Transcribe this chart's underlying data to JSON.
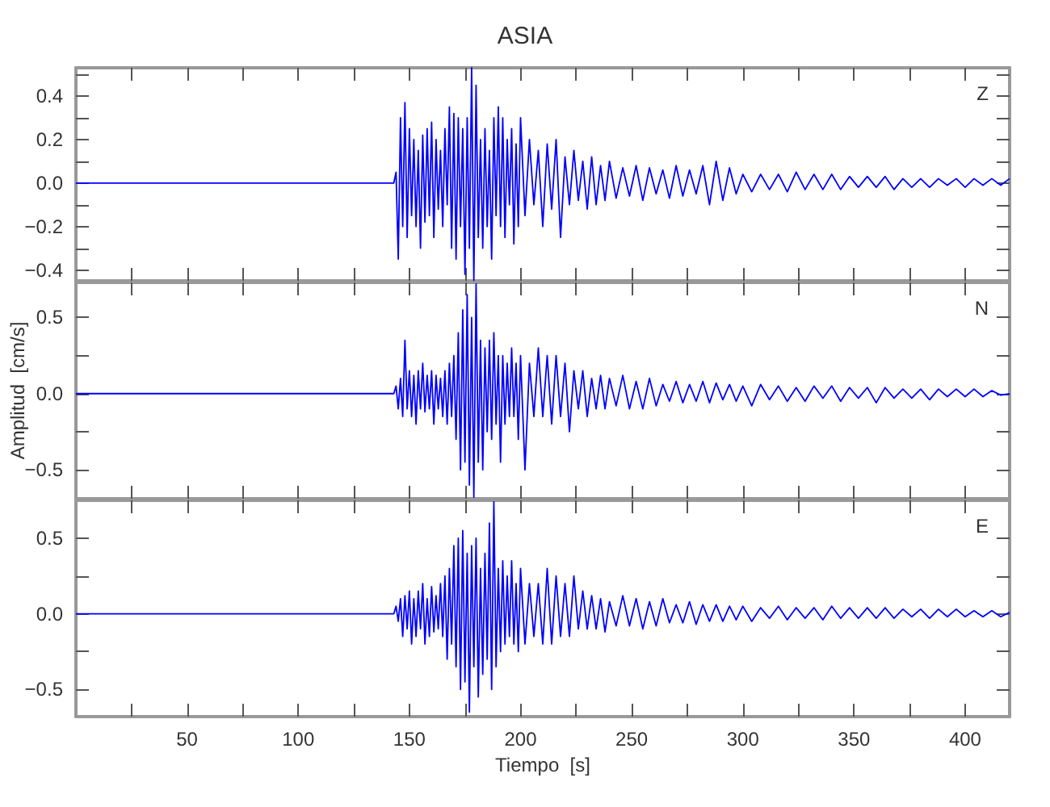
{
  "chart_data": [
    {
      "type": "line",
      "title": "ASIA",
      "annotations": [
        "Z"
      ],
      "tick_labels": "y",
      "xlim": [
        0,
        420
      ],
      "ylim": [
        -0.45,
        0.53
      ],
      "xticks": [
        {
          "value": 25,
          "label": null
        },
        50,
        {
          "value": 75,
          "label": null
        },
        100,
        {
          "value": 125,
          "label": null
        },
        150,
        {
          "value": 175,
          "label": null
        },
        200,
        {
          "value": 225,
          "label": null
        },
        250,
        {
          "value": 275,
          "label": null
        },
        300,
        {
          "value": 325,
          "label": null
        },
        350,
        {
          "value": 375,
          "label": null
        },
        400
      ],
      "yticks": [
        {
          "value": -0.4,
          "label": "−0.4"
        },
        {
          "value": -0.3,
          "label": null
        },
        {
          "value": -0.2,
          "label": "−0.2"
        },
        {
          "value": -0.1,
          "label": null
        },
        {
          "value": 0,
          "label": "0.0"
        },
        {
          "value": 0.1,
          "label": null
        },
        0.2,
        {
          "value": 0.3,
          "label": null
        },
        0.4,
        {
          "value": 0.5,
          "label": null
        }
      ],
      "series": [
        {
          "color": "#0000ff",
          "x": [
            0,
            143,
            144,
            145,
            146,
            147,
            148,
            149,
            150,
            151,
            152,
            153,
            154,
            155,
            156,
            157,
            158,
            159,
            160,
            161,
            162,
            163,
            164,
            165,
            166,
            167,
            168,
            169,
            170,
            171,
            172,
            173,
            174,
            175,
            176,
            177,
            178,
            179,
            180,
            181,
            182,
            183,
            184,
            185,
            186,
            187,
            188,
            189,
            190,
            191,
            192,
            193,
            194,
            195,
            196,
            197,
            198,
            199,
            200,
            202,
            204,
            206,
            208,
            210,
            212,
            214,
            216,
            218,
            220,
            222,
            224,
            226,
            228,
            230,
            232,
            234,
            236,
            238,
            240,
            243,
            246,
            249,
            252,
            255,
            258,
            261,
            264,
            267,
            270,
            273,
            276,
            279,
            282,
            285,
            288,
            291,
            294,
            297,
            300,
            304,
            308,
            312,
            316,
            320,
            324,
            328,
            332,
            336,
            340,
            344,
            348,
            352,
            356,
            360,
            364,
            368,
            372,
            376,
            380,
            384,
            388,
            392,
            396,
            400,
            404,
            408,
            412,
            416,
            420
          ],
          "values": [
            0,
            0,
            0.05,
            -0.35,
            0.3,
            -0.2,
            0.37,
            -0.25,
            0.25,
            -0.15,
            0.2,
            -0.2,
            0.15,
            -0.3,
            0.22,
            -0.18,
            0.25,
            -0.15,
            0.28,
            -0.25,
            0.2,
            -0.12,
            0.15,
            -0.2,
            0.25,
            -0.1,
            0.35,
            -0.3,
            0.32,
            -0.35,
            0.3,
            -0.2,
            0.25,
            -0.42,
            0.3,
            -0.3,
            0.53,
            -0.45,
            0.45,
            -0.25,
            0.2,
            -0.3,
            0.25,
            -0.2,
            0.15,
            -0.35,
            0.3,
            -0.15,
            0.35,
            -0.2,
            0.3,
            -0.25,
            0.2,
            -0.1,
            0.25,
            -0.28,
            0.18,
            -0.2,
            0.3,
            -0.15,
            0.2,
            -0.1,
            0.15,
            -0.2,
            0.18,
            -0.12,
            0.2,
            -0.25,
            0.12,
            -0.1,
            0.15,
            -0.08,
            0.1,
            -0.12,
            0.12,
            -0.1,
            0.08,
            -0.08,
            0.1,
            -0.07,
            0.07,
            -0.06,
            0.08,
            -0.08,
            0.07,
            -0.05,
            0.06,
            -0.07,
            0.08,
            -0.06,
            0.06,
            -0.05,
            0.08,
            -0.1,
            0.1,
            -0.08,
            0.07,
            -0.05,
            0.04,
            -0.04,
            0.04,
            -0.03,
            0.04,
            -0.04,
            0.05,
            -0.03,
            0.04,
            -0.03,
            0.04,
            -0.03,
            0.03,
            -0.02,
            0.03,
            -0.02,
            0.03,
            -0.03,
            0.02,
            -0.02,
            0.02,
            -0.02,
            0.02,
            -0.01,
            0.02,
            -0.02,
            0.02,
            -0.01,
            0.02,
            -0.01,
            0.02
          ]
        }
      ]
    },
    {
      "type": "line",
      "ylabel": "Amplitud  [cm/s]",
      "annotations": [
        "N"
      ],
      "tick_labels": "y",
      "xlim": [
        0,
        420
      ],
      "ylim": [
        -0.69,
        0.73
      ],
      "xticks": [
        {
          "value": 25,
          "label": null
        },
        50,
        {
          "value": 75,
          "label": null
        },
        100,
        {
          "value": 125,
          "label": null
        },
        150,
        {
          "value": 175,
          "label": null
        },
        200,
        {
          "value": 225,
          "label": null
        },
        250,
        {
          "value": 275,
          "label": null
        },
        300,
        {
          "value": 325,
          "label": null
        },
        350,
        {
          "value": 375,
          "label": null
        },
        400
      ],
      "yticks": [
        {
          "value": -0.5,
          "label": "−0.5"
        },
        {
          "value": -0.25,
          "label": null
        },
        {
          "value": 0,
          "label": "0.0"
        },
        {
          "value": 0.25,
          "label": null
        },
        0.5
      ],
      "series": [
        {
          "color": "#0000ff",
          "x": [
            0,
            143,
            144,
            145,
            146,
            147,
            148,
            149,
            150,
            151,
            152,
            153,
            154,
            155,
            156,
            157,
            158,
            159,
            160,
            161,
            162,
            163,
            164,
            165,
            166,
            167,
            168,
            169,
            170,
            171,
            172,
            173,
            174,
            175,
            176,
            177,
            178,
            179,
            180,
            181,
            182,
            183,
            184,
            185,
            186,
            187,
            188,
            189,
            190,
            191,
            192,
            193,
            194,
            195,
            196,
            197,
            198,
            199,
            200,
            202,
            204,
            206,
            208,
            210,
            212,
            214,
            216,
            218,
            220,
            222,
            224,
            226,
            228,
            230,
            232,
            234,
            236,
            238,
            240,
            243,
            246,
            249,
            252,
            255,
            258,
            261,
            264,
            267,
            270,
            273,
            276,
            279,
            282,
            285,
            288,
            291,
            294,
            297,
            300,
            304,
            308,
            312,
            316,
            320,
            324,
            328,
            332,
            336,
            340,
            344,
            348,
            352,
            356,
            360,
            364,
            368,
            372,
            376,
            380,
            384,
            388,
            392,
            396,
            400,
            404,
            408,
            412,
            416,
            420
          ],
          "values": [
            0,
            0,
            0.05,
            -0.1,
            0.1,
            -0.15,
            0.35,
            -0.1,
            0.15,
            -0.15,
            0.12,
            -0.2,
            0.15,
            -0.1,
            0.2,
            -0.12,
            0.12,
            -0.1,
            0.15,
            -0.2,
            0.12,
            -0.1,
            0.1,
            -0.15,
            0.15,
            -0.2,
            0.2,
            -0.15,
            0.25,
            -0.3,
            0.4,
            -0.5,
            0.55,
            -0.45,
            0.65,
            -0.6,
            0.5,
            -0.68,
            0.72,
            -0.45,
            0.35,
            -0.5,
            0.3,
            -0.25,
            0.35,
            -0.3,
            0.4,
            -0.2,
            0.25,
            -0.45,
            0.25,
            -0.2,
            0.2,
            -0.15,
            0.3,
            -0.15,
            0.2,
            -0.3,
            0.25,
            -0.5,
            0.2,
            -0.15,
            0.3,
            -0.15,
            0.25,
            -0.2,
            0.25,
            -0.15,
            0.2,
            -0.25,
            0.15,
            -0.1,
            0.15,
            -0.15,
            0.1,
            -0.1,
            0.12,
            -0.1,
            0.1,
            -0.08,
            0.12,
            -0.1,
            0.08,
            -0.1,
            0.1,
            -0.08,
            0.06,
            -0.05,
            0.08,
            -0.06,
            0.06,
            -0.05,
            0.08,
            -0.06,
            0.07,
            -0.04,
            0.06,
            -0.05,
            0.05,
            -0.08,
            0.06,
            -0.04,
            0.05,
            -0.05,
            0.04,
            -0.05,
            0.05,
            -0.03,
            0.05,
            -0.05,
            0.04,
            -0.03,
            0.04,
            -0.06,
            0.04,
            -0.03,
            0.03,
            -0.03,
            0.03,
            -0.04,
            0.03,
            -0.02,
            0.03,
            -0.02,
            0.03,
            -0.02,
            0.02,
            -0.01,
            0
          ]
        }
      ]
    },
    {
      "type": "line",
      "xlabel": "Tiempo  [s]",
      "annotations": [
        "E"
      ],
      "xlim": [
        0,
        420
      ],
      "ylim": [
        -0.68,
        0.75
      ],
      "xticks": [
        {
          "value": 25,
          "label": null
        },
        50,
        {
          "value": 75,
          "label": null
        },
        100,
        {
          "value": 125,
          "label": null
        },
        150,
        {
          "value": 175,
          "label": null
        },
        200,
        {
          "value": 225,
          "label": null
        },
        250,
        {
          "value": 275,
          "label": null
        },
        300,
        {
          "value": 325,
          "label": null
        },
        350,
        {
          "value": 375,
          "label": null
        },
        400
      ],
      "yticks": [
        {
          "value": -0.5,
          "label": "−0.5"
        },
        {
          "value": -0.25,
          "label": null
        },
        {
          "value": 0,
          "label": "0.0"
        },
        {
          "value": 0.25,
          "label": null
        },
        0.5
      ],
      "series": [
        {
          "color": "#0000ff",
          "x": [
            0,
            143,
            144,
            145,
            146,
            147,
            148,
            149,
            150,
            151,
            152,
            153,
            154,
            155,
            156,
            157,
            158,
            159,
            160,
            161,
            162,
            163,
            164,
            165,
            166,
            167,
            168,
            169,
            170,
            171,
            172,
            173,
            174,
            175,
            176,
            177,
            178,
            179,
            180,
            181,
            182,
            183,
            184,
            185,
            186,
            187,
            188,
            189,
            190,
            191,
            192,
            193,
            194,
            195,
            196,
            197,
            198,
            199,
            200,
            202,
            204,
            206,
            208,
            210,
            212,
            214,
            216,
            218,
            220,
            222,
            224,
            226,
            228,
            230,
            232,
            234,
            236,
            238,
            240,
            243,
            246,
            249,
            252,
            255,
            258,
            261,
            264,
            267,
            270,
            273,
            276,
            279,
            282,
            285,
            288,
            291,
            294,
            297,
            300,
            304,
            308,
            312,
            316,
            320,
            324,
            328,
            332,
            336,
            340,
            344,
            348,
            352,
            356,
            360,
            364,
            368,
            372,
            376,
            380,
            384,
            388,
            392,
            396,
            400,
            404,
            408,
            412,
            416,
            420
          ],
          "values": [
            0,
            0,
            0.05,
            -0.05,
            0.1,
            -0.15,
            0.12,
            -0.1,
            0.15,
            -0.2,
            0.1,
            -0.15,
            0.15,
            -0.1,
            0.2,
            -0.2,
            0.1,
            -0.15,
            0.18,
            -0.12,
            0.12,
            -0.1,
            0.2,
            -0.15,
            0.25,
            -0.3,
            0.3,
            -0.2,
            0.45,
            -0.35,
            0.5,
            -0.5,
            0.55,
            -0.45,
            0.4,
            -0.65,
            0.45,
            -0.35,
            0.5,
            -0.55,
            0.3,
            -0.4,
            0.4,
            -0.3,
            0.6,
            -0.5,
            0.74,
            -0.35,
            0.3,
            -0.25,
            0.35,
            -0.2,
            0.25,
            -0.15,
            0.35,
            -0.2,
            0.2,
            -0.25,
            0.3,
            -0.2,
            0.2,
            -0.15,
            0.2,
            -0.2,
            0.3,
            -0.2,
            0.25,
            -0.15,
            0.2,
            -0.15,
            0.25,
            -0.1,
            0.15,
            -0.1,
            0.12,
            -0.1,
            0.1,
            -0.12,
            0.08,
            -0.08,
            0.12,
            -0.08,
            0.1,
            -0.1,
            0.08,
            -0.08,
            0.1,
            -0.06,
            0.06,
            -0.06,
            0.08,
            -0.07,
            0.06,
            -0.05,
            0.06,
            -0.05,
            0.05,
            -0.04,
            0.05,
            -0.05,
            0.04,
            -0.03,
            0.05,
            -0.04,
            0.04,
            -0.03,
            0.04,
            -0.04,
            0.05,
            -0.03,
            0.04,
            -0.03,
            0.04,
            -0.03,
            0.04,
            -0.03,
            0.03,
            -0.02,
            0.03,
            -0.03,
            0.03,
            -0.02,
            0.03,
            -0.02,
            0.02,
            -0.02,
            0.02,
            -0.02,
            0.01
          ]
        }
      ]
    }
  ]
}
